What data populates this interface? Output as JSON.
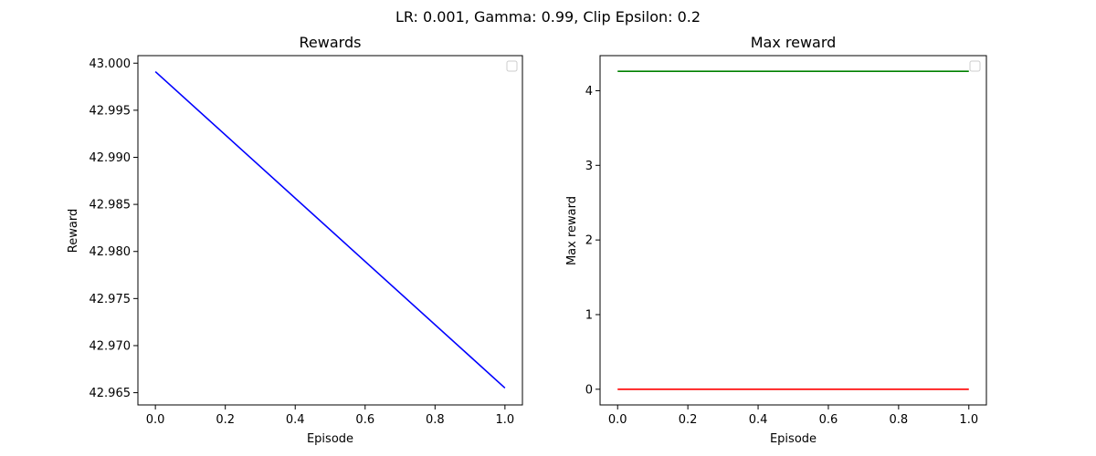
{
  "suptitle": "LR: 0.001, Gamma: 0.99, Clip Epsilon: 0.2",
  "chart_data": [
    {
      "type": "line",
      "title": "Rewards",
      "xlabel": "Episode",
      "ylabel": "Reward",
      "xlim": [
        -0.05,
        1.05
      ],
      "ylim": [
        42.9637,
        43.0008
      ],
      "xticks": [
        0.0,
        0.2,
        0.4,
        0.6,
        0.8,
        1.0
      ],
      "xtick_labels": [
        "0.0",
        "0.2",
        "0.4",
        "0.6",
        "0.8",
        "1.0"
      ],
      "yticks": [
        42.965,
        42.97,
        42.975,
        42.98,
        42.985,
        42.99,
        42.995,
        43.0
      ],
      "ytick_labels": [
        "42.965",
        "42.970",
        "42.975",
        "42.980",
        "42.985",
        "42.990",
        "42.995",
        "43.000"
      ],
      "grid": false,
      "legend": "top-right",
      "series": [
        {
          "color": "#0000ff",
          "x": [
            0,
            1
          ],
          "y": [
            42.9991,
            42.9655
          ]
        }
      ]
    },
    {
      "type": "line",
      "title": "Max reward",
      "xlabel": "Episode",
      "ylabel": "Max reward",
      "xlim": [
        -0.05,
        1.05
      ],
      "ylim": [
        -0.21,
        4.47
      ],
      "xticks": [
        0.0,
        0.2,
        0.4,
        0.6,
        0.8,
        1.0
      ],
      "xtick_labels": [
        "0.0",
        "0.2",
        "0.4",
        "0.6",
        "0.8",
        "1.0"
      ],
      "yticks": [
        0,
        1,
        2,
        3,
        4
      ],
      "ytick_labels": [
        "0",
        "1",
        "2",
        "3",
        "4"
      ],
      "grid": false,
      "legend": "top-right",
      "series": [
        {
          "color": "#008000",
          "x": [
            0,
            1
          ],
          "y": [
            4.26,
            4.26
          ]
        },
        {
          "color": "#ff0000",
          "x": [
            0,
            1
          ],
          "y": [
            0,
            0
          ]
        }
      ]
    }
  ]
}
